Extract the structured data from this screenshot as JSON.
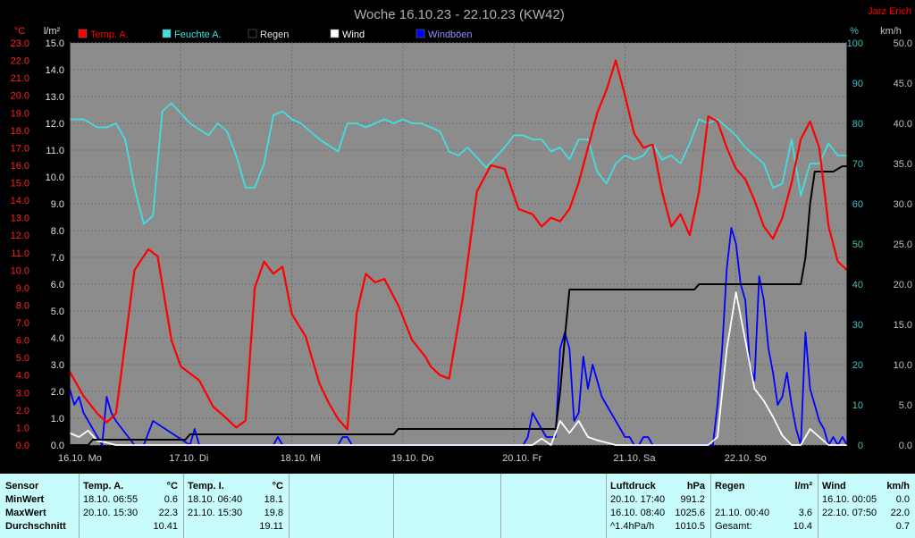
{
  "chart_data": {
    "type": "line",
    "title": "Woche 16.10.23 - 22.10.23 (KW42)",
    "author": "Jarz Erich",
    "x_labels": [
      "16.10. Mo",
      "17.10. Di",
      "18.10. Mi",
      "19.10. Do",
      "20.10. Fr",
      "21.10. Sa",
      "22.10. So"
    ],
    "xlim_hours": [
      0,
      168
    ],
    "axes": {
      "temp_c": {
        "unit": "°C",
        "range": [
          0,
          23
        ],
        "ticks": [
          "0.0",
          "1.0",
          "2.0",
          "3.0",
          "4.0",
          "5.0",
          "6.0",
          "7.0",
          "8.0",
          "9.0",
          "10.0",
          "11.0",
          "12.0",
          "13.0",
          "14.0",
          "15.0",
          "16.0",
          "17.0",
          "18.0",
          "19.0",
          "20.0",
          "21.0",
          "22.0",
          "23.0"
        ],
        "color": "#ff0000"
      },
      "rain_lm2": {
        "unit": "l/m²",
        "range": [
          0,
          15
        ],
        "ticks": [
          "0.0",
          "1.0",
          "2.0",
          "3.0",
          "4.0",
          "5.0",
          "6.0",
          "7.0",
          "8.0",
          "9.0",
          "10.0",
          "11.0",
          "12.0",
          "13.0",
          "14.0",
          "15.0"
        ],
        "color": "#000000"
      },
      "humidity_pct": {
        "unit": "%",
        "range": [
          0,
          100
        ],
        "ticks": [
          "0",
          "10",
          "20",
          "30",
          "40",
          "50",
          "60",
          "70",
          "80",
          "90",
          "100"
        ],
        "color": "#40c0c0"
      },
      "wind_kmh": {
        "unit": "km/h",
        "range": [
          0,
          50
        ],
        "ticks": [
          "0.0",
          "5.0",
          "10.0",
          "15.0",
          "20.0",
          "25.0",
          "30.0",
          "35.0",
          "40.0",
          "45.0",
          "50.0"
        ],
        "color": "#000000"
      }
    },
    "grid": true,
    "legend_position": "top",
    "series": [
      {
        "name": "Temp. A.",
        "axis": "temp_c",
        "color": "#ff0000",
        "x": [
          0,
          3,
          6,
          8,
          10,
          14,
          17,
          19,
          22,
          24,
          28,
          31,
          34,
          36,
          38,
          40,
          42,
          44,
          46,
          48,
          51,
          54,
          56,
          58,
          60,
          62,
          64,
          66,
          68,
          71,
          74,
          77,
          78,
          80,
          82,
          85,
          88,
          91,
          94,
          97,
          100,
          102,
          104,
          106,
          108,
          110,
          112,
          114,
          116,
          118,
          120,
          122,
          124,
          126,
          128,
          130,
          132,
          134,
          136,
          138,
          140,
          142,
          144,
          146,
          148,
          150,
          152,
          154,
          156,
          158,
          160,
          162,
          164,
          166,
          168
        ],
        "y": [
          4.2,
          2.8,
          1.8,
          1.3,
          1.8,
          10.0,
          11.2,
          10.8,
          6.0,
          4.5,
          3.7,
          2.2,
          1.5,
          1.0,
          1.4,
          9.0,
          10.5,
          9.8,
          10.2,
          7.5,
          6.2,
          3.5,
          2.4,
          1.5,
          0.9,
          7.5,
          9.8,
          9.3,
          9.5,
          8.0,
          6.0,
          5.0,
          4.5,
          4.0,
          3.8,
          8.5,
          14.5,
          16.0,
          15.8,
          13.5,
          13.2,
          12.5,
          13.0,
          12.8,
          13.5,
          15.0,
          17.0,
          19.0,
          20.3,
          22.0,
          20.0,
          17.8,
          17.0,
          17.2,
          14.5,
          12.5,
          13.2,
          12.0,
          14.5,
          18.8,
          18.5,
          17.0,
          15.8,
          15.2,
          14.0,
          12.5,
          11.8,
          13.0,
          15.0,
          17.5,
          18.5,
          17.0,
          12.5,
          10.5,
          10.0
        ]
      },
      {
        "name": "Feuchte A.",
        "axis": "humidity_pct",
        "color": "#40e0e0",
        "x": [
          0,
          3,
          6,
          8,
          10,
          12,
          14,
          16,
          18,
          20,
          22,
          26,
          30,
          32,
          34,
          36,
          38,
          40,
          42,
          44,
          46,
          48,
          50,
          54,
          58,
          60,
          62,
          64,
          66,
          68,
          70,
          72,
          74,
          76,
          80,
          82,
          84,
          86,
          90,
          94,
          96,
          98,
          100,
          102,
          104,
          106,
          108,
          110,
          112,
          114,
          116,
          118,
          120,
          122,
          124,
          126,
          128,
          130,
          132,
          134,
          136,
          138,
          140,
          142,
          144,
          146,
          148,
          150,
          152,
          154,
          156,
          158,
          160,
          162,
          164,
          166,
          168
        ],
        "y": [
          81,
          81,
          79,
          79,
          80,
          76,
          64,
          55,
          57,
          83,
          85,
          80,
          77,
          80,
          78,
          72,
          64,
          64,
          70,
          82,
          83,
          81,
          80,
          76,
          73,
          80,
          80,
          79,
          80,
          81,
          80,
          81,
          80,
          80,
          78,
          73,
          72,
          74,
          69,
          74,
          77,
          77,
          76,
          76,
          73,
          74,
          71,
          76,
          76,
          68,
          65,
          70,
          72,
          71,
          72,
          75,
          71,
          72,
          70,
          75,
          81,
          80,
          81,
          79,
          77,
          74,
          72,
          70,
          64,
          65,
          76,
          62,
          70,
          70,
          75,
          72,
          72
        ]
      },
      {
        "name": "Regen",
        "axis": "rain_lm2",
        "color": "#000000",
        "x": [
          0,
          4,
          5,
          6,
          25,
          26,
          27,
          70,
          71,
          72,
          105,
          106,
          107,
          108,
          109,
          110,
          111,
          135,
          136,
          137,
          158,
          159,
          160,
          161,
          163,
          165,
          167,
          168
        ],
        "y": [
          0.0,
          0.0,
          0.2,
          0.2,
          0.2,
          0.4,
          0.4,
          0.4,
          0.6,
          0.6,
          0.6,
          2.0,
          4.0,
          5.8,
          5.8,
          5.8,
          5.8,
          5.8,
          6.0,
          6.0,
          6.0,
          7.0,
          9.0,
          10.2,
          10.2,
          10.2,
          10.4,
          10.4
        ]
      },
      {
        "name": "Wind",
        "axis": "wind_kmh",
        "color": "#ffffff",
        "x": [
          0,
          2,
          4,
          6,
          8,
          10,
          100,
          102,
          104,
          106,
          108,
          110,
          112,
          114,
          116,
          118,
          120,
          122,
          138,
          140,
          142,
          144,
          146,
          148,
          150,
          152,
          154,
          156,
          158,
          160,
          162,
          164,
          166,
          168
        ],
        "y": [
          1.5,
          1.0,
          1.8,
          0.5,
          0.3,
          0.0,
          0.0,
          0.8,
          0.0,
          3.0,
          1.5,
          3.0,
          1.0,
          0.6,
          0.3,
          0.0,
          0.0,
          0.0,
          0.0,
          1.0,
          12.0,
          19.0,
          13.0,
          7.0,
          5.5,
          3.5,
          1.2,
          0.0,
          0.0,
          2.0,
          1.0,
          0.0,
          0.0,
          0.0
        ]
      },
      {
        "name": "Windböen",
        "axis": "wind_kmh",
        "color": "#0000ff",
        "x": [
          0,
          1,
          2,
          3,
          4,
          5,
          6,
          7,
          8,
          9,
          10,
          14,
          16,
          18,
          26,
          27,
          28,
          44,
          45,
          46,
          58,
          59,
          60,
          61,
          98,
          99,
          100,
          101,
          102,
          103,
          104,
          105,
          106,
          107,
          108,
          109,
          110,
          111,
          112,
          113,
          114,
          115,
          116,
          117,
          118,
          119,
          120,
          121,
          122,
          123,
          124,
          125,
          126,
          127,
          128,
          138,
          139,
          140,
          141,
          142,
          143,
          144,
          145,
          146,
          147,
          148,
          149,
          150,
          151,
          152,
          153,
          154,
          155,
          156,
          157,
          158,
          159,
          160,
          161,
          162,
          163,
          164,
          165,
          166,
          167,
          168
        ],
        "y": [
          7,
          5,
          6,
          4,
          3,
          2,
          1,
          0,
          6,
          4,
          3,
          0,
          0,
          3,
          0,
          2,
          0,
          0,
          1,
          0,
          0,
          1,
          1,
          0,
          0,
          1,
          4,
          3,
          2,
          1,
          1,
          1,
          12,
          14,
          12,
          3,
          4,
          11,
          7,
          10,
          8,
          6,
          5,
          4,
          3,
          2,
          1,
          1,
          0,
          0,
          1,
          1,
          0,
          0,
          0,
          0,
          0,
          5,
          12,
          22,
          27,
          25,
          20,
          18,
          10,
          8,
          21,
          18,
          12,
          9,
          5,
          6,
          9,
          5,
          2,
          0,
          14,
          7,
          5,
          3,
          2,
          0,
          1,
          0,
          1,
          0
        ]
      }
    ]
  },
  "table": {
    "col_sensor": {
      "header": "Sensor",
      "rows": [
        "MinWert",
        "MaxWert",
        "Durchschnitt"
      ]
    },
    "col_temp_a": {
      "header": "Temp. A.",
      "unit": "°C",
      "rows": [
        {
          "time": "18.10.  06:55",
          "value": "0.6"
        },
        {
          "time": "20.10.  15:30",
          "value": "22.3"
        },
        {
          "time": "",
          "value": "10.41"
        }
      ]
    },
    "col_temp_i": {
      "header": "Temp. I.",
      "unit": "°C",
      "rows": [
        {
          "time": "18.10.  06:40",
          "value": "18.1"
        },
        {
          "time": "21.10.  15:30",
          "value": "19.8"
        },
        {
          "time": "",
          "value": "19.11"
        }
      ]
    },
    "col_luftdruck": {
      "header": "Luftdruck",
      "unit": "hPa",
      "rows": [
        {
          "time": "20.10.  17:40",
          "value": "991.2"
        },
        {
          "time": "16.10.  08:40",
          "value": "1025.6"
        },
        {
          "time": "^1.4hPa/h",
          "value": "1010.5"
        }
      ]
    },
    "col_regen": {
      "header": "Regen",
      "unit": "l/m²",
      "rows": [
        {
          "time": "",
          "value": ""
        },
        {
          "time": "21.10.  00:40",
          "value": "3.6"
        },
        {
          "time": "Gesamt:",
          "value": "10.4"
        }
      ]
    },
    "col_wind": {
      "header": "Wind",
      "unit": "km/h",
      "rows": [
        {
          "time": "16.10.  00:05",
          "value": "0.0"
        },
        {
          "time": "22.10.  07:50",
          "value": "22.0"
        },
        {
          "time": "",
          "value": "0.7"
        }
      ]
    }
  }
}
